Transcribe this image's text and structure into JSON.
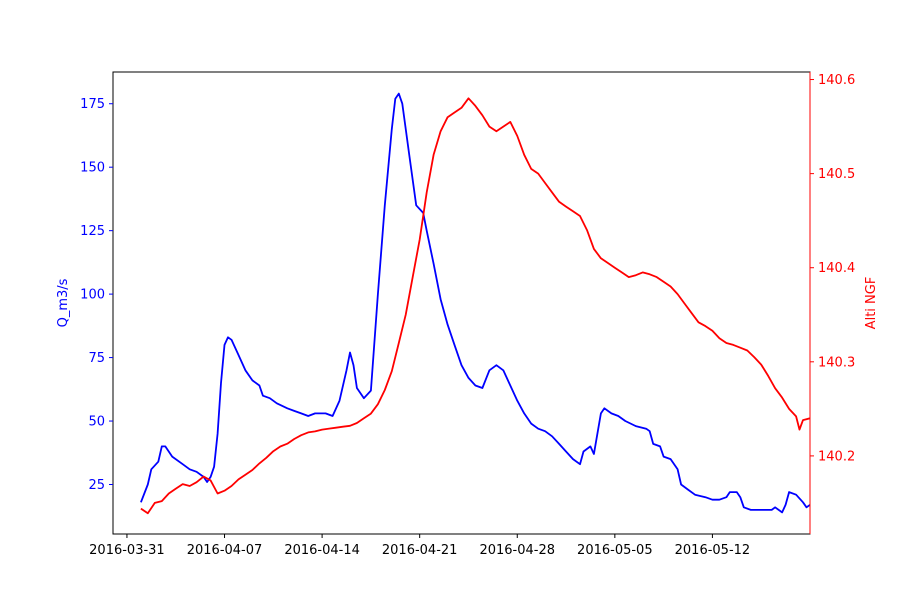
{
  "chart_data": {
    "type": "line",
    "x_type": "date",
    "title": "",
    "xlabel": "",
    "xlim": [
      "2016-03-30",
      "2016-05-19"
    ],
    "x_ticks": [
      "2016-03-31",
      "2016-04-07",
      "2016-04-14",
      "2016-04-21",
      "2016-04-28",
      "2016-05-05",
      "2016-05-12"
    ],
    "grid": false,
    "legend": "none",
    "y_left": {
      "label": "Q_m3/s",
      "color": "#0000ff",
      "ylim": [
        5.5,
        187.5
      ],
      "ticks": [
        "25",
        "50",
        "75",
        "100",
        "125",
        "150",
        "175"
      ]
    },
    "y_right": {
      "label": "Alti NGF",
      "color": "#ff0000",
      "ylim": [
        140.117,
        140.608
      ],
      "ticks": [
        "140.2",
        "140.3",
        "140.4",
        "140.5",
        "140.6"
      ]
    },
    "series": [
      {
        "axis": "left",
        "color": "#0000ff",
        "points": [
          [
            "2016-04-01 00:00",
            18
          ],
          [
            "2016-04-01 12:00",
            25
          ],
          [
            "2016-04-01 18:00",
            31
          ],
          [
            "2016-04-02 06:00",
            34
          ],
          [
            "2016-04-02 12:00",
            40
          ],
          [
            "2016-04-02 18:00",
            40
          ],
          [
            "2016-04-03 06:00",
            36
          ],
          [
            "2016-04-04 00:00",
            33
          ],
          [
            "2016-04-04 12:00",
            31
          ],
          [
            "2016-04-05 00:00",
            30
          ],
          [
            "2016-04-05 12:00",
            28
          ],
          [
            "2016-04-05 18:00",
            26
          ],
          [
            "2016-04-06 00:00",
            28
          ],
          [
            "2016-04-06 06:00",
            32
          ],
          [
            "2016-04-06 12:00",
            45
          ],
          [
            "2016-04-06 18:00",
            65
          ],
          [
            "2016-04-07 00:00",
            80
          ],
          [
            "2016-04-07 06:00",
            83
          ],
          [
            "2016-04-07 12:00",
            82
          ],
          [
            "2016-04-08 00:00",
            76
          ],
          [
            "2016-04-08 12:00",
            70
          ],
          [
            "2016-04-09 00:00",
            66
          ],
          [
            "2016-04-09 12:00",
            64
          ],
          [
            "2016-04-09 18:00",
            60
          ],
          [
            "2016-04-10 06:00",
            59
          ],
          [
            "2016-04-10 18:00",
            57
          ],
          [
            "2016-04-11 12:00",
            55
          ],
          [
            "2016-04-12 00:00",
            54
          ],
          [
            "2016-04-12 12:00",
            53
          ],
          [
            "2016-04-13 00:00",
            52
          ],
          [
            "2016-04-13 12:00",
            53
          ],
          [
            "2016-04-14 06:00",
            53
          ],
          [
            "2016-04-14 18:00",
            52
          ],
          [
            "2016-04-15 06:00",
            58
          ],
          [
            "2016-04-15 18:00",
            70
          ],
          [
            "2016-04-16 00:00",
            77
          ],
          [
            "2016-04-16 06:00",
            72
          ],
          [
            "2016-04-16 12:00",
            63
          ],
          [
            "2016-04-17 00:00",
            59
          ],
          [
            "2016-04-17 12:00",
            62
          ],
          [
            "2016-04-18 00:00",
            100
          ],
          [
            "2016-04-18 12:00",
            135
          ],
          [
            "2016-04-19 00:00",
            165
          ],
          [
            "2016-04-19 06:00",
            177
          ],
          [
            "2016-04-19 12:00",
            179
          ],
          [
            "2016-04-19 18:00",
            175
          ],
          [
            "2016-04-20 06:00",
            155
          ],
          [
            "2016-04-20 18:00",
            135
          ],
          [
            "2016-04-21 06:00",
            132
          ],
          [
            "2016-04-21 12:00",
            125
          ],
          [
            "2016-04-22 00:00",
            112
          ],
          [
            "2016-04-22 12:00",
            98
          ],
          [
            "2016-04-23 00:00",
            88
          ],
          [
            "2016-04-23 12:00",
            80
          ],
          [
            "2016-04-24 00:00",
            72
          ],
          [
            "2016-04-24 12:00",
            67
          ],
          [
            "2016-04-25 00:00",
            64
          ],
          [
            "2016-04-25 12:00",
            63
          ],
          [
            "2016-04-26 00:00",
            70
          ],
          [
            "2016-04-26 12:00",
            72
          ],
          [
            "2016-04-27 00:00",
            70
          ],
          [
            "2016-04-27 12:00",
            64
          ],
          [
            "2016-04-28 00:00",
            58
          ],
          [
            "2016-04-28 12:00",
            53
          ],
          [
            "2016-04-29 00:00",
            49
          ],
          [
            "2016-04-29 12:00",
            47
          ],
          [
            "2016-04-30 00:00",
            46
          ],
          [
            "2016-04-30 12:00",
            44
          ],
          [
            "2016-05-01 00:00",
            41
          ],
          [
            "2016-05-01 12:00",
            38
          ],
          [
            "2016-05-02 00:00",
            35
          ],
          [
            "2016-05-02 12:00",
            33
          ],
          [
            "2016-05-02 18:00",
            38
          ],
          [
            "2016-05-03 06:00",
            40
          ],
          [
            "2016-05-03 12:00",
            37
          ],
          [
            "2016-05-03 18:00",
            45
          ],
          [
            "2016-05-04 00:00",
            53
          ],
          [
            "2016-05-04 06:00",
            55
          ],
          [
            "2016-05-04 18:00",
            53
          ],
          [
            "2016-05-05 06:00",
            52
          ],
          [
            "2016-05-05 18:00",
            50
          ],
          [
            "2016-05-06 12:00",
            48
          ],
          [
            "2016-05-07 06:00",
            47
          ],
          [
            "2016-05-07 12:00",
            46
          ],
          [
            "2016-05-07 18:00",
            41
          ],
          [
            "2016-05-08 06:00",
            40
          ],
          [
            "2016-05-08 12:00",
            36
          ],
          [
            "2016-05-09 00:00",
            35
          ],
          [
            "2016-05-09 12:00",
            31
          ],
          [
            "2016-05-09 18:00",
            25
          ],
          [
            "2016-05-10 06:00",
            23
          ],
          [
            "2016-05-10 18:00",
            21
          ],
          [
            "2016-05-11 12:00",
            20
          ],
          [
            "2016-05-12 00:00",
            19
          ],
          [
            "2016-05-12 12:00",
            19
          ],
          [
            "2016-05-13 00:00",
            20
          ],
          [
            "2016-05-13 06:00",
            22
          ],
          [
            "2016-05-13 18:00",
            22
          ],
          [
            "2016-05-14 00:00",
            20
          ],
          [
            "2016-05-14 06:00",
            16
          ],
          [
            "2016-05-14 18:00",
            15
          ],
          [
            "2016-05-15 12:00",
            15
          ],
          [
            "2016-05-16 06:00",
            15
          ],
          [
            "2016-05-16 12:00",
            16
          ],
          [
            "2016-05-17 00:00",
            14
          ],
          [
            "2016-05-17 06:00",
            17
          ],
          [
            "2016-05-17 12:00",
            22
          ],
          [
            "2016-05-18 00:00",
            21
          ],
          [
            "2016-05-18 12:00",
            18
          ],
          [
            "2016-05-18 18:00",
            16
          ],
          [
            "2016-05-19 00:00",
            17
          ]
        ]
      },
      {
        "axis": "right",
        "color": "#ff0000",
        "points": [
          [
            "2016-04-01 00:00",
            140.144
          ],
          [
            "2016-04-01 12:00",
            140.139
          ],
          [
            "2016-04-02 00:00",
            140.15
          ],
          [
            "2016-04-02 12:00",
            140.152
          ],
          [
            "2016-04-03 00:00",
            140.16
          ],
          [
            "2016-04-03 12:00",
            140.165
          ],
          [
            "2016-04-04 00:00",
            140.17
          ],
          [
            "2016-04-04 12:00",
            140.168
          ],
          [
            "2016-04-05 00:00",
            140.172
          ],
          [
            "2016-04-05 12:00",
            140.178
          ],
          [
            "2016-04-06 00:00",
            140.174
          ],
          [
            "2016-04-06 12:00",
            140.16
          ],
          [
            "2016-04-07 00:00",
            140.163
          ],
          [
            "2016-04-07 12:00",
            140.168
          ],
          [
            "2016-04-08 00:00",
            140.175
          ],
          [
            "2016-04-08 12:00",
            140.18
          ],
          [
            "2016-04-09 00:00",
            140.185
          ],
          [
            "2016-04-09 12:00",
            140.192
          ],
          [
            "2016-04-10 00:00",
            140.198
          ],
          [
            "2016-04-10 12:00",
            140.205
          ],
          [
            "2016-04-11 00:00",
            140.21
          ],
          [
            "2016-04-11 12:00",
            140.213
          ],
          [
            "2016-04-12 00:00",
            140.218
          ],
          [
            "2016-04-12 12:00",
            140.222
          ],
          [
            "2016-04-13 00:00",
            140.225
          ],
          [
            "2016-04-13 12:00",
            140.226
          ],
          [
            "2016-04-14 00:00",
            140.228
          ],
          [
            "2016-04-14 12:00",
            140.229
          ],
          [
            "2016-04-15 00:00",
            140.23
          ],
          [
            "2016-04-15 12:00",
            140.231
          ],
          [
            "2016-04-16 00:00",
            140.232
          ],
          [
            "2016-04-16 12:00",
            140.235
          ],
          [
            "2016-04-17 00:00",
            140.24
          ],
          [
            "2016-04-17 12:00",
            140.245
          ],
          [
            "2016-04-18 00:00",
            140.255
          ],
          [
            "2016-04-18 12:00",
            140.27
          ],
          [
            "2016-04-19 00:00",
            140.29
          ],
          [
            "2016-04-19 12:00",
            140.32
          ],
          [
            "2016-04-20 00:00",
            140.35
          ],
          [
            "2016-04-20 12:00",
            140.39
          ],
          [
            "2016-04-21 00:00",
            140.43
          ],
          [
            "2016-04-21 12:00",
            140.48
          ],
          [
            "2016-04-22 00:00",
            140.52
          ],
          [
            "2016-04-22 12:00",
            140.545
          ],
          [
            "2016-04-23 00:00",
            140.56
          ],
          [
            "2016-04-23 12:00",
            140.565
          ],
          [
            "2016-04-24 00:00",
            140.57
          ],
          [
            "2016-04-24 12:00",
            140.58
          ],
          [
            "2016-04-25 00:00",
            140.572
          ],
          [
            "2016-04-25 12:00",
            140.562
          ],
          [
            "2016-04-26 00:00",
            140.55
          ],
          [
            "2016-04-26 12:00",
            140.545
          ],
          [
            "2016-04-27 00:00",
            140.55
          ],
          [
            "2016-04-27 12:00",
            140.555
          ],
          [
            "2016-04-28 00:00",
            140.54
          ],
          [
            "2016-04-28 12:00",
            140.52
          ],
          [
            "2016-04-29 00:00",
            140.505
          ],
          [
            "2016-04-29 12:00",
            140.5
          ],
          [
            "2016-04-30 00:00",
            140.49
          ],
          [
            "2016-04-30 12:00",
            140.48
          ],
          [
            "2016-05-01 00:00",
            140.47
          ],
          [
            "2016-05-01 12:00",
            140.465
          ],
          [
            "2016-05-02 00:00",
            140.46
          ],
          [
            "2016-05-02 12:00",
            140.455
          ],
          [
            "2016-05-03 00:00",
            140.44
          ],
          [
            "2016-05-03 12:00",
            140.42
          ],
          [
            "2016-05-04 00:00",
            140.41
          ],
          [
            "2016-05-04 12:00",
            140.405
          ],
          [
            "2016-05-05 00:00",
            140.4
          ],
          [
            "2016-05-05 12:00",
            140.395
          ],
          [
            "2016-05-06 00:00",
            140.39
          ],
          [
            "2016-05-06 12:00",
            140.392
          ],
          [
            "2016-05-07 00:00",
            140.395
          ],
          [
            "2016-05-07 12:00",
            140.393
          ],
          [
            "2016-05-08 00:00",
            140.39
          ],
          [
            "2016-05-08 12:00",
            140.385
          ],
          [
            "2016-05-09 00:00",
            140.38
          ],
          [
            "2016-05-09 12:00",
            140.372
          ],
          [
            "2016-05-10 00:00",
            140.362
          ],
          [
            "2016-05-10 12:00",
            140.352
          ],
          [
            "2016-05-11 00:00",
            140.342
          ],
          [
            "2016-05-11 12:00",
            140.338
          ],
          [
            "2016-05-12 00:00",
            140.333
          ],
          [
            "2016-05-12 12:00",
            140.325
          ],
          [
            "2016-05-13 00:00",
            140.32
          ],
          [
            "2016-05-13 12:00",
            140.318
          ],
          [
            "2016-05-14 00:00",
            140.315
          ],
          [
            "2016-05-14 12:00",
            140.312
          ],
          [
            "2016-05-15 00:00",
            140.305
          ],
          [
            "2016-05-15 12:00",
            140.297
          ],
          [
            "2016-05-16 00:00",
            140.285
          ],
          [
            "2016-05-16 12:00",
            140.272
          ],
          [
            "2016-05-17 00:00",
            140.262
          ],
          [
            "2016-05-17 12:00",
            140.25
          ],
          [
            "2016-05-18 00:00",
            140.242
          ],
          [
            "2016-05-18 06:00",
            140.228
          ],
          [
            "2016-05-18 12:00",
            140.238
          ],
          [
            "2016-05-19 00:00",
            140.24
          ]
        ]
      }
    ]
  }
}
